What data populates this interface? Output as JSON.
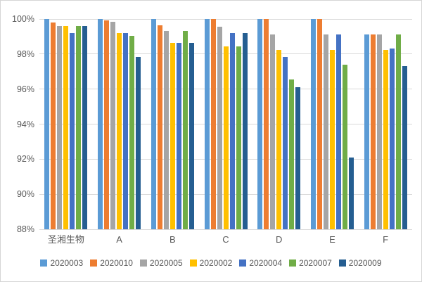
{
  "chart_data": {
    "type": "bar",
    "title": "",
    "xlabel": "",
    "ylabel": "",
    "categories": [
      "圣湘生物",
      "A",
      "B",
      "C",
      "D",
      "E",
      "F"
    ],
    "series": [
      {
        "name": "2020003",
        "color": "#5B9BD5",
        "values": [
          100,
          100,
          100,
          100,
          100,
          100,
          99.1
        ]
      },
      {
        "name": "2020010",
        "color": "#ED7D31",
        "values": [
          99.8,
          99.9,
          99.65,
          100,
          100,
          100,
          99.1
        ]
      },
      {
        "name": "2020005",
        "color": "#A5A5A5",
        "values": [
          99.6,
          99.85,
          99.3,
          99.55,
          99.1,
          99.1,
          99.1
        ]
      },
      {
        "name": "2020002",
        "color": "#FFC000",
        "values": [
          99.6,
          99.2,
          98.65,
          98.45,
          98.25,
          98.25,
          98.25
        ]
      },
      {
        "name": "2020004",
        "color": "#4472C4",
        "values": [
          99.2,
          99.2,
          98.65,
          99.2,
          97.85,
          99.1,
          98.3
        ]
      },
      {
        "name": "2020007",
        "color": "#70AD47",
        "values": [
          99.6,
          99.05,
          99.3,
          98.45,
          96.55,
          97.4,
          99.1
        ]
      },
      {
        "name": "2020009",
        "color": "#255E91",
        "values": [
          99.6,
          97.85,
          98.65,
          99.2,
          96.1,
          92.1,
          97.3
        ]
      }
    ],
    "ylim": [
      88,
      100
    ],
    "ytick_step": 2,
    "ytick_suffix": "%",
    "grid": true,
    "legend_position": "bottom",
    "axis_text_color": "#595959",
    "gridline_color": "#D9D9D9"
  }
}
